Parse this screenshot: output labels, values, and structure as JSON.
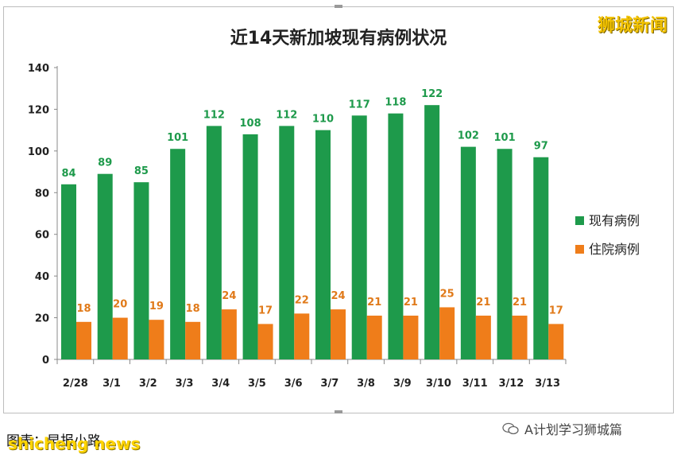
{
  "watermark": "狮城新闻",
  "source_label": "图表：早报小路",
  "source_overlay": "shicheng news",
  "wechat_account": "A计划学习狮城篇",
  "colors": {
    "current": "#1e9a4b",
    "hospital": "#ef7d1a",
    "current_label": "#1e9a4b",
    "hospital_label": "#e07a1a"
  },
  "chart_data": {
    "type": "bar",
    "title": "近14天新加坡现有病例状况",
    "xlabel": "",
    "ylabel": "",
    "ylim": [
      0,
      140
    ],
    "yticks": [
      0,
      20,
      40,
      60,
      80,
      100,
      120,
      140
    ],
    "grid": false,
    "legend_position": "right",
    "categories": [
      "2/28",
      "3/1",
      "3/2",
      "3/3",
      "3/4",
      "3/5",
      "3/6",
      "3/7",
      "3/8",
      "3/9",
      "3/10",
      "3/11",
      "3/12",
      "3/13"
    ],
    "series": [
      {
        "name": "现有病例",
        "values": [
          84,
          89,
          85,
          101,
          112,
          108,
          112,
          110,
          117,
          118,
          122,
          102,
          101,
          97
        ]
      },
      {
        "name": "住院病例",
        "values": [
          18,
          20,
          19,
          18,
          24,
          17,
          22,
          24,
          21,
          21,
          25,
          21,
          21,
          17
        ]
      }
    ]
  }
}
